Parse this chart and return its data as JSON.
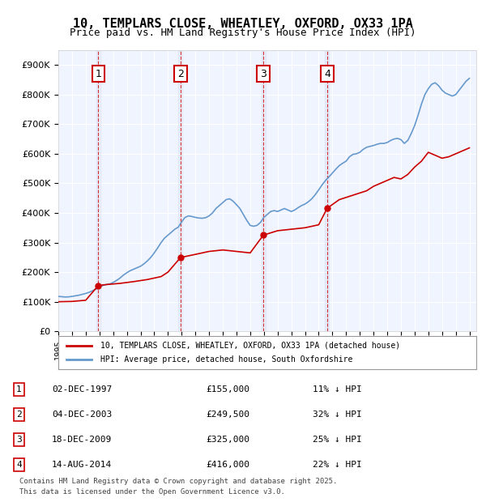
{
  "title": "10, TEMPLARS CLOSE, WHEATLEY, OXFORD, OX33 1PA",
  "subtitle": "Price paid vs. HM Land Registry's House Price Index (HPI)",
  "ylabel_ticks": [
    "£0",
    "£100K",
    "£200K",
    "£300K",
    "£400K",
    "£500K",
    "£600K",
    "£700K",
    "£800K",
    "£900K"
  ],
  "ytick_vals": [
    0,
    100000,
    200000,
    300000,
    400000,
    500000,
    600000,
    700000,
    800000,
    900000
  ],
  "ylim": [
    0,
    950000
  ],
  "xlim_start": 1995.0,
  "xlim_end": 2025.5,
  "hpi_color": "#6699cc",
  "price_color": "#cc0000",
  "vline_color": "#cc0000",
  "background_color": "#ffffff",
  "plot_bg_color": "#f0f4ff",
  "grid_color": "#ffffff",
  "legend_label_red": "10, TEMPLARS CLOSE, WHEATLEY, OXFORD, OX33 1PA (detached house)",
  "legend_label_blue": "HPI: Average price, detached house, South Oxfordshire",
  "footer_line1": "Contains HM Land Registry data © Crown copyright and database right 2025.",
  "footer_line2": "This data is licensed under the Open Government Licence v3.0.",
  "purchases": [
    {
      "num": 1,
      "date": "02-DEC-1997",
      "price": 155000,
      "pct": "11%",
      "year": 1997.92
    },
    {
      "num": 2,
      "date": "04-DEC-2003",
      "price": 249500,
      "pct": "32%",
      "year": 2003.92
    },
    {
      "num": 3,
      "date": "18-DEC-2009",
      "price": 325000,
      "pct": "25%",
      "year": 2009.96
    },
    {
      "num": 4,
      "date": "14-AUG-2014",
      "price": 416000,
      "pct": "22%",
      "year": 2014.62
    }
  ],
  "hpi_data": {
    "years": [
      1995.0,
      1995.25,
      1995.5,
      1995.75,
      1996.0,
      1996.25,
      1996.5,
      1996.75,
      1997.0,
      1997.25,
      1997.5,
      1997.75,
      1998.0,
      1998.25,
      1998.5,
      1998.75,
      1999.0,
      1999.25,
      1999.5,
      1999.75,
      2000.0,
      2000.25,
      2000.5,
      2000.75,
      2001.0,
      2001.25,
      2001.5,
      2001.75,
      2002.0,
      2002.25,
      2002.5,
      2002.75,
      2003.0,
      2003.25,
      2003.5,
      2003.75,
      2004.0,
      2004.25,
      2004.5,
      2004.75,
      2005.0,
      2005.25,
      2005.5,
      2005.75,
      2006.0,
      2006.25,
      2006.5,
      2006.75,
      2007.0,
      2007.25,
      2007.5,
      2007.75,
      2008.0,
      2008.25,
      2008.5,
      2008.75,
      2009.0,
      2009.25,
      2009.5,
      2009.75,
      2010.0,
      2010.25,
      2010.5,
      2010.75,
      2011.0,
      2011.25,
      2011.5,
      2011.75,
      2012.0,
      2012.25,
      2012.5,
      2012.75,
      2013.0,
      2013.25,
      2013.5,
      2013.75,
      2014.0,
      2014.25,
      2014.5,
      2014.75,
      2015.0,
      2015.25,
      2015.5,
      2015.75,
      2016.0,
      2016.25,
      2016.5,
      2016.75,
      2017.0,
      2017.25,
      2017.5,
      2017.75,
      2018.0,
      2018.25,
      2018.5,
      2018.75,
      2019.0,
      2019.25,
      2019.5,
      2019.75,
      2020.0,
      2020.25,
      2020.5,
      2020.75,
      2021.0,
      2021.25,
      2021.5,
      2021.75,
      2022.0,
      2022.25,
      2022.5,
      2022.75,
      2023.0,
      2023.25,
      2023.5,
      2023.75,
      2024.0,
      2024.25,
      2024.5,
      2024.75,
      2025.0
    ],
    "values": [
      118000,
      117000,
      116000,
      116500,
      118000,
      120000,
      122000,
      125000,
      128000,
      132000,
      137000,
      143000,
      150000,
      155000,
      158000,
      160000,
      165000,
      172000,
      180000,
      190000,
      198000,
      205000,
      210000,
      215000,
      220000,
      228000,
      238000,
      250000,
      265000,
      282000,
      300000,
      315000,
      325000,
      335000,
      345000,
      352000,
      370000,
      385000,
      390000,
      388000,
      385000,
      383000,
      382000,
      384000,
      390000,
      400000,
      415000,
      425000,
      435000,
      445000,
      448000,
      440000,
      428000,
      415000,
      395000,
      375000,
      358000,
      355000,
      358000,
      368000,
      385000,
      395000,
      405000,
      408000,
      405000,
      410000,
      415000,
      410000,
      405000,
      410000,
      418000,
      425000,
      430000,
      438000,
      448000,
      462000,
      478000,
      495000,
      510000,
      522000,
      535000,
      548000,
      560000,
      568000,
      575000,
      590000,
      598000,
      600000,
      605000,
      615000,
      622000,
      625000,
      628000,
      632000,
      635000,
      635000,
      638000,
      645000,
      650000,
      652000,
      648000,
      635000,
      645000,
      668000,
      695000,
      730000,
      768000,
      800000,
      820000,
      835000,
      840000,
      830000,
      815000,
      805000,
      800000,
      795000,
      800000,
      815000,
      830000,
      845000,
      855000
    ]
  },
  "price_data": {
    "years": [
      1995.0,
      1996.0,
      1997.0,
      1997.92,
      1998.5,
      1999.5,
      2000.5,
      2001.5,
      2002.5,
      2003.0,
      2003.92,
      2005.0,
      2006.0,
      2007.0,
      2008.0,
      2009.0,
      2009.96,
      2011.0,
      2012.0,
      2013.0,
      2014.0,
      2014.62,
      2015.5,
      2016.5,
      2017.5,
      2018.0,
      2018.5,
      2019.0,
      2019.5,
      2020.0,
      2020.5,
      2021.0,
      2021.5,
      2022.0,
      2022.5,
      2023.0,
      2023.5,
      2024.0,
      2024.5,
      2025.0
    ],
    "values": [
      100000,
      101000,
      105000,
      155000,
      158000,
      162000,
      168000,
      175000,
      185000,
      200000,
      249500,
      260000,
      270000,
      275000,
      270000,
      265000,
      325000,
      340000,
      345000,
      350000,
      360000,
      416000,
      445000,
      460000,
      475000,
      490000,
      500000,
      510000,
      520000,
      515000,
      530000,
      555000,
      575000,
      605000,
      595000,
      585000,
      590000,
      600000,
      610000,
      620000
    ]
  }
}
